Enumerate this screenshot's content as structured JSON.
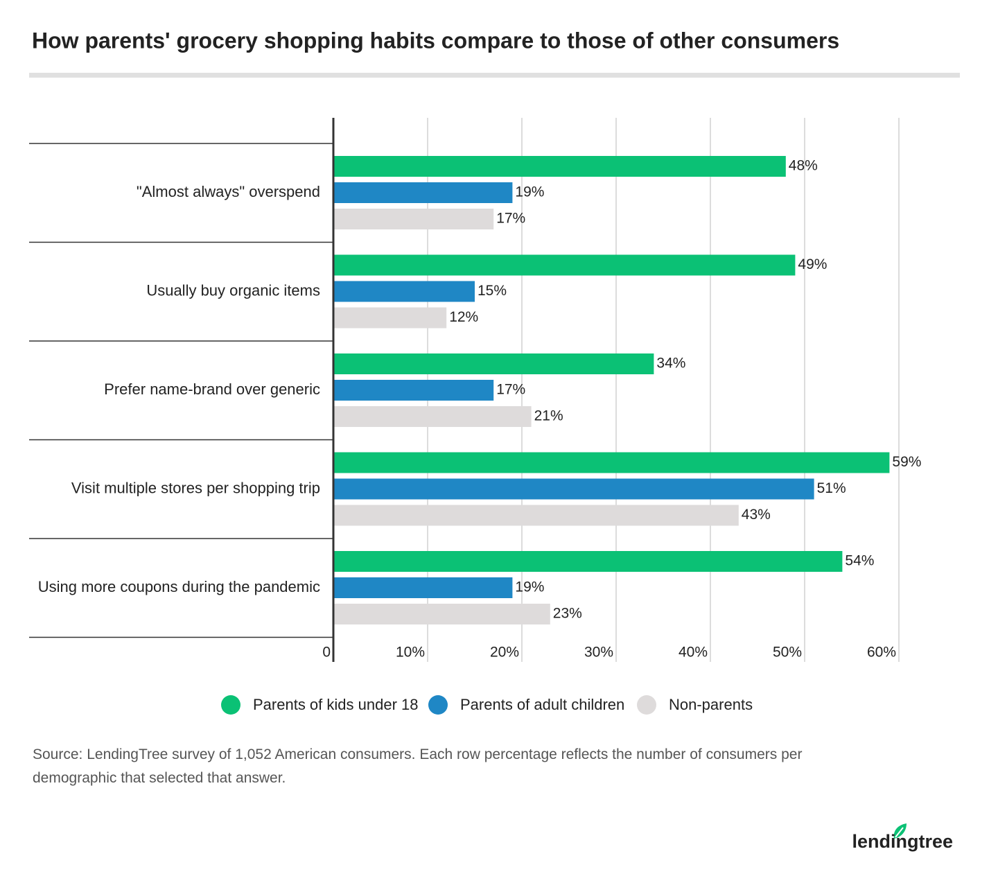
{
  "chart_data": {
    "type": "grouped-hbar",
    "title": "How parents' grocery shopping habits compare to those of other consumers",
    "categories": [
      "\"Almost always\" overspend",
      "Usually buy organic items",
      "Prefer name-brand over generic",
      "Visit multiple stores per shopping trip",
      "Using more coupons during the pandemic"
    ],
    "series": [
      {
        "name": "Parents of kids under 18",
        "color": "#0bc175",
        "values": [
          48,
          49,
          34,
          59,
          54
        ],
        "value_labels": [
          "48%",
          "49%",
          "34%",
          "59%",
          "54%"
        ]
      },
      {
        "name": "Parents of adult children",
        "color": "#1f87c5",
        "values": [
          19,
          15,
          17,
          51,
          19
        ],
        "value_labels": [
          "19%",
          "15%",
          "17%",
          "51%",
          "19%"
        ]
      },
      {
        "name": "Non-parents",
        "color": "#dedbdb",
        "values": [
          17,
          12,
          21,
          43,
          23
        ],
        "value_labels": [
          "17%",
          "12%",
          "21%",
          "43%",
          "23%"
        ]
      }
    ],
    "xlim": [
      0,
      60
    ],
    "xticks": [
      0,
      {
        "value": 10,
        "label": "10%"
      },
      {
        "value": 20,
        "label": "20%"
      },
      {
        "value": 30,
        "label": "30%"
      },
      {
        "value": 40,
        "label": "40%"
      },
      {
        "value": 50,
        "label": "50%"
      },
      {
        "value": 60,
        "label": "60%"
      }
    ],
    "grid": true,
    "legend": "bottom",
    "source": "Source: LendingTree survey of 1,052 American consumers. Each row percentage reflects the number of consumers per demographic that selected that answer.",
    "brand": "lendingtree"
  }
}
